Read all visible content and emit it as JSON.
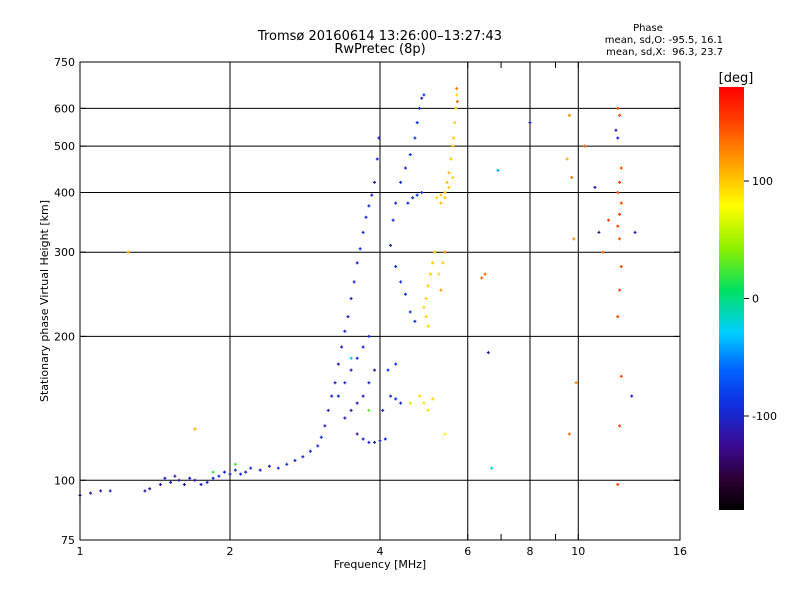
{
  "chart_data": {
    "type": "scatter",
    "title": "Tromsø 20160614 13:26:00–13:27:43",
    "subtitle": "RwPretec (8p)",
    "xlabel": "Frequency [MHz]",
    "ylabel": "Stationary phase Virtual Height [km]",
    "x_scale": "log",
    "y_scale": "log",
    "xlim": [
      1,
      16
    ],
    "ylim": [
      75,
      750
    ],
    "x_ticks": [
      1,
      2,
      4,
      6,
      8,
      10,
      16
    ],
    "x_minor_ticks": [
      7,
      9
    ],
    "y_ticks": [
      75,
      100,
      200,
      300,
      400,
      500,
      600,
      750
    ],
    "x_grid": [
      2,
      4,
      6,
      8,
      10
    ],
    "y_grid": [
      100,
      200,
      300,
      400,
      500,
      600
    ],
    "stats": {
      "heading": "Phase",
      "line_o": "mean, sd,O: -95.5, 16.1",
      "line_x": "mean, sd,X:  96.3, 23.7"
    },
    "colorbar": {
      "label": "[deg]",
      "range": [
        -180,
        180
      ],
      "ticks": [
        100,
        0,
        -100
      ]
    },
    "series": [
      {
        "points": [
          [
            1.0,
            93,
            -110
          ],
          [
            1.05,
            94,
            -115
          ],
          [
            1.1,
            95,
            -108
          ],
          [
            1.15,
            95,
            -105
          ],
          [
            1.35,
            95,
            -120
          ],
          [
            1.38,
            96,
            -112
          ],
          [
            1.45,
            98,
            -108
          ],
          [
            1.48,
            101,
            -105
          ],
          [
            1.52,
            99,
            -100
          ],
          [
            1.55,
            102,
            -110
          ],
          [
            1.58,
            100,
            -106
          ],
          [
            1.62,
            98,
            -112
          ],
          [
            1.66,
            101,
            -100
          ],
          [
            1.7,
            100,
            -108
          ],
          [
            1.75,
            98,
            -104
          ],
          [
            1.8,
            99,
            -96
          ],
          [
            1.85,
            101,
            -102
          ],
          [
            1.9,
            102,
            -98
          ],
          [
            1.95,
            104,
            -100
          ],
          [
            2.0,
            103,
            -96
          ],
          [
            2.05,
            105,
            -94
          ],
          [
            2.1,
            103,
            -100
          ],
          [
            2.15,
            104,
            -98
          ],
          [
            2.2,
            106,
            -95
          ],
          [
            2.3,
            105,
            -97
          ],
          [
            2.4,
            107,
            -95
          ],
          [
            2.5,
            106,
            -94
          ],
          [
            2.6,
            108,
            -93
          ],
          [
            2.7,
            110,
            -92
          ],
          [
            2.8,
            112,
            -95
          ],
          [
            2.9,
            115,
            -92
          ],
          [
            3.0,
            118,
            -95
          ],
          [
            3.05,
            123,
            -96
          ],
          [
            3.1,
            130,
            -100
          ],
          [
            3.15,
            140,
            -102
          ],
          [
            3.2,
            150,
            -104
          ],
          [
            3.25,
            160,
            -106
          ],
          [
            3.3,
            175,
            -108
          ],
          [
            3.35,
            190,
            -106
          ],
          [
            3.4,
            205,
            -102
          ],
          [
            3.45,
            220,
            -104
          ],
          [
            3.5,
            240,
            -100
          ],
          [
            3.55,
            260,
            -98
          ],
          [
            3.6,
            285,
            -100
          ],
          [
            3.65,
            305,
            -96
          ],
          [
            3.7,
            330,
            -98
          ],
          [
            3.75,
            355,
            -95
          ],
          [
            3.8,
            375,
            -97
          ],
          [
            3.85,
            395,
            -95
          ],
          [
            3.9,
            420,
            -96
          ],
          [
            3.95,
            470,
            -98
          ],
          [
            3.98,
            520,
            -100
          ],
          [
            3.3,
            150,
            -104
          ],
          [
            3.4,
            160,
            -102
          ],
          [
            3.5,
            170,
            -100
          ],
          [
            3.6,
            180,
            -98
          ],
          [
            3.7,
            190,
            -96
          ],
          [
            3.8,
            200,
            -98
          ],
          [
            3.4,
            135,
            -110
          ],
          [
            3.5,
            140,
            -108
          ],
          [
            3.6,
            145,
            -106
          ],
          [
            3.7,
            150,
            -104
          ],
          [
            3.8,
            160,
            -102
          ],
          [
            3.9,
            170,
            -100
          ],
          [
            3.6,
            125,
            -108
          ],
          [
            3.7,
            122,
            -106
          ],
          [
            3.8,
            120,
            -104
          ],
          [
            3.9,
            120,
            -102
          ],
          [
            4.0,
            121,
            -100
          ],
          [
            4.1,
            122,
            -98
          ],
          [
            4.05,
            140,
            -96
          ],
          [
            4.2,
            150,
            -94
          ],
          [
            4.3,
            148,
            -92
          ],
          [
            4.4,
            145,
            -95
          ],
          [
            4.15,
            170,
            -90
          ],
          [
            4.3,
            175,
            -88
          ],
          [
            4.25,
            350,
            -96
          ],
          [
            4.3,
            380,
            -94
          ],
          [
            4.4,
            420,
            -92
          ],
          [
            4.5,
            450,
            -90
          ],
          [
            4.6,
            480,
            -88
          ],
          [
            4.7,
            520,
            -86
          ],
          [
            4.75,
            560,
            -90
          ],
          [
            4.8,
            600,
            -92
          ],
          [
            4.85,
            630,
            -94
          ],
          [
            4.9,
            640,
            -96
          ],
          [
            4.2,
            310,
            -92
          ],
          [
            4.3,
            280,
            -90
          ],
          [
            4.4,
            260,
            -88
          ],
          [
            4.5,
            245,
            -86
          ],
          [
            4.6,
            225,
            -84
          ],
          [
            4.7,
            215,
            -82
          ],
          [
            4.55,
            380,
            -92
          ],
          [
            4.65,
            390,
            -90
          ],
          [
            4.75,
            395,
            -88
          ],
          [
            4.85,
            400,
            -86
          ]
        ]
      },
      {
        "points": [
          [
            4.9,
            230,
            95
          ],
          [
            4.95,
            240,
            98
          ],
          [
            5.0,
            255,
            100
          ],
          [
            5.05,
            270,
            102
          ],
          [
            5.1,
            285,
            100
          ],
          [
            5.15,
            300,
            98
          ],
          [
            5.0,
            210,
            96
          ],
          [
            4.95,
            220,
            94
          ],
          [
            4.8,
            150,
            92
          ],
          [
            4.9,
            145,
            90
          ],
          [
            5.0,
            140,
            94
          ],
          [
            5.1,
            148,
            96
          ],
          [
            5.2,
            390,
            98
          ],
          [
            5.3,
            395,
            100
          ],
          [
            5.4,
            400,
            102
          ],
          [
            5.45,
            420,
            104
          ],
          [
            5.5,
            440,
            106
          ],
          [
            5.55,
            470,
            104
          ],
          [
            5.6,
            500,
            102
          ],
          [
            5.62,
            520,
            100
          ],
          [
            5.65,
            560,
            98
          ],
          [
            5.68,
            600,
            96
          ],
          [
            5.7,
            640,
            94
          ],
          [
            5.6,
            430,
            98
          ],
          [
            5.5,
            410,
            100
          ],
          [
            5.4,
            390,
            102
          ],
          [
            5.3,
            380,
            104
          ],
          [
            5.35,
            285,
            98
          ],
          [
            5.25,
            270,
            96
          ],
          [
            5.7,
            660,
            130
          ],
          [
            5.72,
            620,
            135
          ],
          [
            5.3,
            250,
            120
          ],
          [
            5.4,
            300,
            125
          ],
          [
            6.4,
            265,
            140
          ],
          [
            6.5,
            270,
            138
          ],
          [
            6.9,
            445,
            -40
          ],
          [
            6.6,
            185,
            -120
          ],
          [
            8.0,
            560,
            -100
          ],
          [
            9.6,
            580,
            120
          ],
          [
            9.5,
            470,
            110
          ],
          [
            9.7,
            430,
            130
          ],
          [
            9.8,
            320,
            125
          ],
          [
            9.9,
            160,
            130
          ],
          [
            9.6,
            125,
            135
          ],
          [
            10.3,
            500,
            140
          ],
          [
            10.8,
            410,
            -110
          ],
          [
            11.0,
            330,
            -120
          ],
          [
            11.2,
            300,
            140
          ],
          [
            11.5,
            350,
            150
          ],
          [
            12.0,
            600,
            150
          ],
          [
            12.1,
            580,
            145
          ],
          [
            11.9,
            540,
            -110
          ],
          [
            12.0,
            520,
            -100
          ],
          [
            12.2,
            450,
            150
          ],
          [
            12.1,
            420,
            155
          ],
          [
            12.0,
            400,
            150
          ],
          [
            12.2,
            380,
            148
          ],
          [
            12.1,
            360,
            152
          ],
          [
            12.0,
            340,
            150
          ],
          [
            12.1,
            320,
            148
          ],
          [
            12.2,
            280,
            150
          ],
          [
            12.1,
            250,
            152
          ],
          [
            12.0,
            220,
            150
          ],
          [
            12.2,
            165,
            150
          ],
          [
            12.1,
            130,
            152
          ],
          [
            12.0,
            98,
            150
          ],
          [
            12.8,
            150,
            -100
          ],
          [
            13.0,
            330,
            -110
          ],
          [
            1.25,
            300,
            110
          ],
          [
            1.7,
            128,
            110
          ],
          [
            2.05,
            108,
            20
          ],
          [
            3.8,
            140,
            30
          ],
          [
            4.6,
            145,
            60
          ],
          [
            5.4,
            125,
            80
          ],
          [
            6.7,
            106,
            -20
          ],
          [
            1.85,
            104,
            20
          ],
          [
            3.5,
            180,
            -20
          ]
        ]
      }
    ]
  }
}
